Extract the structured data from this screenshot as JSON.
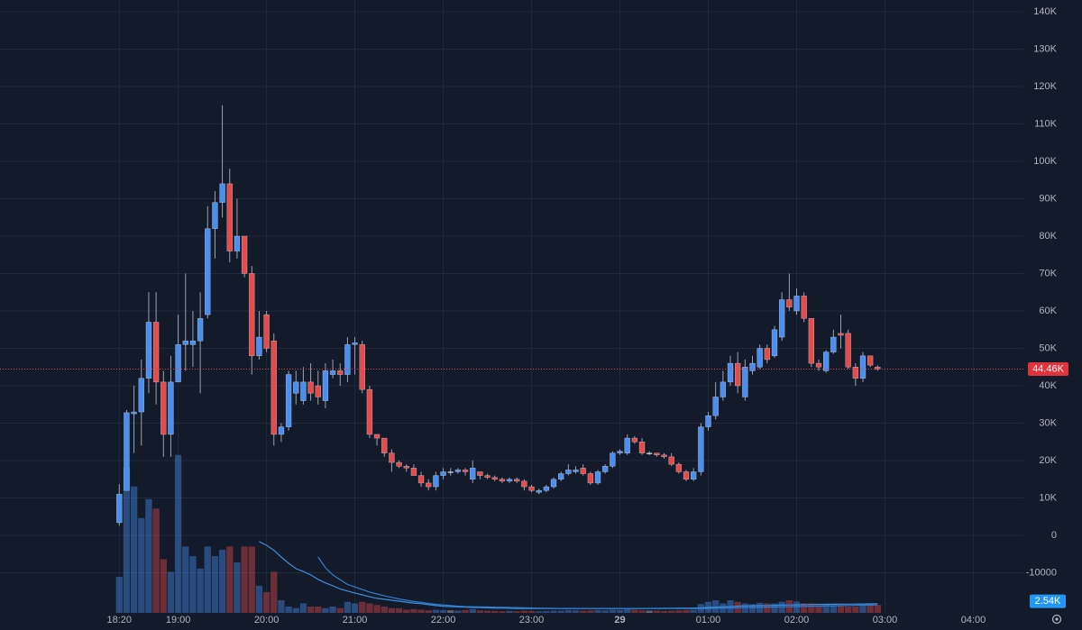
{
  "chart_data": {
    "type": "candlestick",
    "x": [
      "18:20",
      "18:25",
      "18:30",
      "18:35",
      "18:40",
      "18:45",
      "18:50",
      "18:55",
      "19:00",
      "19:05",
      "19:10",
      "19:15",
      "19:20",
      "19:25",
      "19:30",
      "19:35",
      "19:40",
      "19:45",
      "19:50",
      "19:55",
      "20:00",
      "20:05",
      "20:10",
      "20:15",
      "20:20",
      "20:25",
      "20:30",
      "20:35",
      "20:40",
      "20:45",
      "20:50",
      "20:55",
      "21:00",
      "21:05",
      "21:10",
      "21:15",
      "21:20",
      "21:25",
      "21:30",
      "21:35",
      "21:40",
      "21:45",
      "21:50",
      "21:55",
      "22:00",
      "22:05",
      "22:10",
      "22:15",
      "22:20",
      "22:25",
      "22:30",
      "22:35",
      "22:40",
      "22:45",
      "22:50",
      "22:55",
      "23:00",
      "23:05",
      "23:10",
      "23:15",
      "23:20",
      "23:25",
      "23:30",
      "23:35",
      "23:40",
      "23:45",
      "23:50",
      "23:55",
      "00:00",
      "00:05",
      "00:10",
      "00:15",
      "00:20",
      "00:25",
      "00:30",
      "00:35",
      "00:40",
      "00:45",
      "00:50",
      "00:55",
      "01:00",
      "01:05",
      "01:10",
      "01:15",
      "01:20",
      "01:25",
      "01:30",
      "01:35",
      "01:40",
      "01:45",
      "01:50",
      "01:55",
      "02:00",
      "02:05",
      "02:10",
      "02:15",
      "02:20",
      "02:25",
      "02:30",
      "02:35",
      "02:40",
      "02:45",
      "02:50",
      "02:55"
    ],
    "open": [
      3400,
      12000,
      32500,
      33000,
      42000,
      57000,
      41000,
      27000,
      41000,
      51000,
      51000,
      52000,
      59000,
      82000,
      89000,
      94000,
      76000,
      80000,
      70000,
      48000,
      59000,
      52000,
      27000,
      29000,
      38000,
      36000,
      41000,
      40000,
      36000,
      43000,
      44000,
      43000,
      51000,
      51000,
      39000,
      27000,
      26000,
      22000,
      19500,
      18500,
      18000,
      16000,
      14000,
      13000,
      16000,
      17000,
      17000,
      17500,
      15000,
      17000,
      16000,
      15500,
      15000,
      14500,
      15000,
      14500,
      13000,
      11500,
      12000,
      13000,
      15000,
      16500,
      17000,
      18000,
      16500,
      14000,
      17000,
      18500,
      22000,
      22000,
      26000,
      25000,
      22000,
      22000,
      21500,
      21000,
      19000,
      17000,
      15000,
      17000,
      29000,
      32000,
      37000,
      41000,
      46000,
      37000,
      44000,
      45000,
      50000,
      48000,
      53000,
      63000,
      60000,
      64000,
      58000,
      46000,
      44000,
      49000,
      54000,
      54000,
      45000,
      42000,
      48000,
      45000
    ],
    "high": [
      13700,
      33500,
      40000,
      47000,
      65000,
      65000,
      44000,
      48000,
      59000,
      70000,
      60000,
      65000,
      88000,
      92000,
      115000,
      98000,
      90000,
      80000,
      72000,
      60000,
      60000,
      54000,
      30000,
      44000,
      44000,
      45000,
      46000,
      44000,
      46000,
      47000,
      46000,
      53000,
      53000,
      52000,
      40000,
      27000,
      26000,
      23000,
      20000,
      19000,
      19000,
      17000,
      15000,
      17000,
      18000,
      18000,
      18000,
      18000,
      20000,
      17000,
      16500,
      16000,
      15500,
      15500,
      15500,
      15000,
      13500,
      12500,
      13500,
      15500,
      17000,
      19000,
      18500,
      19000,
      17000,
      17500,
      19000,
      22500,
      23000,
      27000,
      26500,
      26000,
      22500,
      22000,
      22000,
      22000,
      19500,
      17500,
      18000,
      30000,
      33000,
      41000,
      44000,
      48000,
      49000,
      47000,
      48000,
      51000,
      51000,
      56000,
      65000,
      70000,
      66000,
      65000,
      58000,
      47000,
      49500,
      55000,
      59000,
      55000,
      46000,
      49000,
      48000,
      45500
    ],
    "low": [
      2600,
      13000,
      22000,
      24000,
      38000,
      35000,
      21000,
      21000,
      41000,
      44000,
      45000,
      38000,
      58000,
      74000,
      85000,
      73000,
      74000,
      69000,
      43000,
      47000,
      49000,
      24000,
      25000,
      28000,
      35000,
      35000,
      36000,
      35000,
      34000,
      42000,
      40000,
      41000,
      43000,
      38000,
      26000,
      24000,
      21000,
      17000,
      18000,
      17000,
      16000,
      13000,
      12000,
      12000,
      15000,
      16000,
      16500,
      16000,
      14000,
      15000,
      15000,
      14500,
      14000,
      14000,
      14000,
      12000,
      11500,
      11000,
      11500,
      12500,
      14500,
      16000,
      16500,
      16000,
      13500,
      13500,
      16500,
      18000,
      21500,
      21500,
      24500,
      21500,
      21500,
      21000,
      20500,
      18500,
      16500,
      14500,
      14500,
      16000,
      28000,
      31000,
      36000,
      40000,
      38000,
      36000,
      43000,
      44500,
      46000,
      47500,
      52000,
      60000,
      59000,
      57000,
      45000,
      44000,
      43500,
      48500,
      50000,
      44500,
      40000,
      41000,
      45000,
      44000
    ],
    "close": [
      11000,
      32800,
      33000,
      42000,
      57000,
      41000,
      27000,
      41000,
      51000,
      52000,
      52000,
      58000,
      82000,
      89000,
      94000,
      76000,
      80000,
      70000,
      48000,
      53000,
      50000,
      27000,
      29000,
      43000,
      41000,
      41000,
      38000,
      37000,
      44000,
      44000,
      43000,
      51000,
      51500,
      39000,
      27000,
      26000,
      22000,
      19500,
      18500,
      18000,
      16000,
      14000,
      13000,
      16000,
      17000,
      17000,
      17500,
      17000,
      18000,
      16000,
      15500,
      15000,
      14500,
      15000,
      14500,
      13000,
      12000,
      12000,
      13000,
      15000,
      16500,
      17500,
      17500,
      16500,
      14000,
      17000,
      18500,
      22000,
      22500,
      26000,
      25000,
      22000,
      22000,
      21500,
      21000,
      19000,
      17000,
      15000,
      17000,
      29000,
      32000,
      37000,
      41000,
      46000,
      40000,
      45000,
      46000,
      50000,
      47000,
      55000,
      63000,
      61000,
      64000,
      58000,
      46000,
      45000,
      49000,
      53000,
      53500,
      45000,
      42000,
      48000,
      45500,
      44460
    ],
    "volume": [
      11400,
      46000,
      40000,
      30000,
      36000,
      33000,
      17000,
      13000,
      50000,
      21000,
      18000,
      14000,
      21000,
      18000,
      20000,
      21000,
      16000,
      21000,
      21000,
      8600,
      6600,
      13000,
      4000,
      2000,
      1500,
      3000,
      2000,
      2000,
      1500,
      2000,
      1500,
      3500,
      3000,
      3500,
      3000,
      2500,
      2000,
      1500,
      1500,
      1000,
      1200,
      1000,
      800,
      1000,
      900,
      800,
      700,
      900,
      1200,
      800,
      700,
      600,
      500,
      600,
      500,
      700,
      600,
      500,
      600,
      700,
      700,
      900,
      800,
      700,
      800,
      900,
      800,
      1000,
      900,
      1200,
      1000,
      800,
      700,
      700,
      600,
      700,
      800,
      900,
      1000,
      2800,
      3500,
      4000,
      3000,
      4000,
      3500,
      3000,
      2800,
      3200,
      3000,
      3000,
      3500,
      4000,
      3600,
      3000,
      3000,
      2500,
      2800,
      2500,
      2200,
      2000,
      2000,
      2400,
      2800,
      2540
    ],
    "volume_ma": [
      {
        "color": "#3d8fe0",
        "values": [
          null,
          null,
          null,
          null,
          null,
          null,
          null,
          null,
          null,
          null,
          null,
          null,
          null,
          null,
          null,
          null,
          null,
          null,
          null,
          22600,
          21400,
          19800,
          17700,
          15700,
          14000,
          13100,
          12000,
          10600,
          9500,
          8600,
          7600,
          6900,
          6300,
          5700,
          5100,
          4600,
          4300,
          4000,
          3700,
          3400,
          3100,
          2900,
          2600,
          2300,
          2100,
          2000,
          1900,
          1800,
          1700,
          1650,
          1600,
          1550,
          1500,
          1450,
          1400,
          1400,
          1400,
          1400,
          1400,
          1400,
          1400,
          1400,
          1400,
          1400,
          1400,
          1400,
          1400,
          1400,
          1400,
          1400,
          1400,
          1400,
          1420,
          1440,
          1460,
          1480,
          1500,
          1520,
          1540,
          1600,
          1700,
          1800,
          1900,
          2000,
          2100,
          2200,
          2250,
          2300,
          2350,
          2400,
          2450,
          2500,
          2550,
          2600,
          2650,
          2700,
          2720,
          2740,
          2760,
          2780,
          2800,
          2820,
          2850,
          2900
        ]
      },
      {
        "color": "#2f7fd0",
        "values": [
          null,
          null,
          null,
          null,
          null,
          null,
          null,
          null,
          null,
          null,
          null,
          null,
          null,
          null,
          null,
          null,
          null,
          null,
          null,
          null,
          null,
          null,
          null,
          null,
          null,
          null,
          null,
          17700,
          14300,
          12000,
          10500,
          9000,
          8200,
          7400,
          6600,
          6000,
          5400,
          4900,
          4400,
          4000,
          3600,
          3300,
          3000,
          2700,
          2500,
          2300,
          2100,
          2000,
          1950,
          1900,
          1850,
          1800,
          1750,
          1700,
          1650,
          1600,
          1550,
          1500,
          1450,
          1420,
          1400,
          1400,
          1400,
          1400,
          1400,
          1400,
          1400,
          1400,
          1400,
          1400,
          1400,
          1400,
          1400,
          1400,
          1400,
          1400,
          1400,
          1400,
          1400,
          1400,
          1400,
          1450,
          1500,
          1550,
          1600,
          1650,
          1700,
          1750,
          1800,
          1850,
          1900,
          1950,
          2000,
          2050,
          2100,
          2150,
          2200,
          2250,
          2300,
          2350,
          2400,
          2450,
          2480,
          2520
        ]
      }
    ],
    "up_color": "#4a8ef0",
    "down_color": "#e64b4b",
    "flat_color": "#c8ccd4",
    "ylim": [
      -20720,
      143130
    ],
    "yticks": [
      -10000,
      0,
      {
        "value": 10000,
        "label": "10K"
      },
      {
        "value": 20000,
        "label": "20K"
      },
      {
        "value": 30000,
        "label": "30K"
      },
      {
        "value": 40000,
        "label": "40K"
      },
      {
        "value": 50000,
        "label": "50K"
      },
      {
        "value": 60000,
        "label": "60K"
      },
      {
        "value": 70000,
        "label": "70K"
      },
      {
        "value": 80000,
        "label": "80K"
      },
      {
        "value": 90000,
        "label": "90K"
      },
      {
        "value": 100000,
        "label": "100K"
      },
      {
        "value": 110000,
        "label": "110K"
      },
      {
        "value": 120000,
        "label": "120K"
      },
      {
        "value": 130000,
        "label": "130K"
      },
      {
        "value": 140000,
        "label": "140K"
      }
    ],
    "y2lim": [
      0,
      194000
    ],
    "xlim": [
      "16:59",
      "04:34"
    ],
    "xticks": [
      "18:20",
      "19:00",
      "20:00",
      "21:00",
      "22:00",
      "23:00",
      {
        "value": "00:00",
        "label": "29"
      },
      "01:00",
      "02:00",
      "03:00",
      "04:00"
    ],
    "grid": true,
    "last_price": 44460,
    "last_price_label": "44.46K",
    "volume_last_label": "2.54K"
  }
}
